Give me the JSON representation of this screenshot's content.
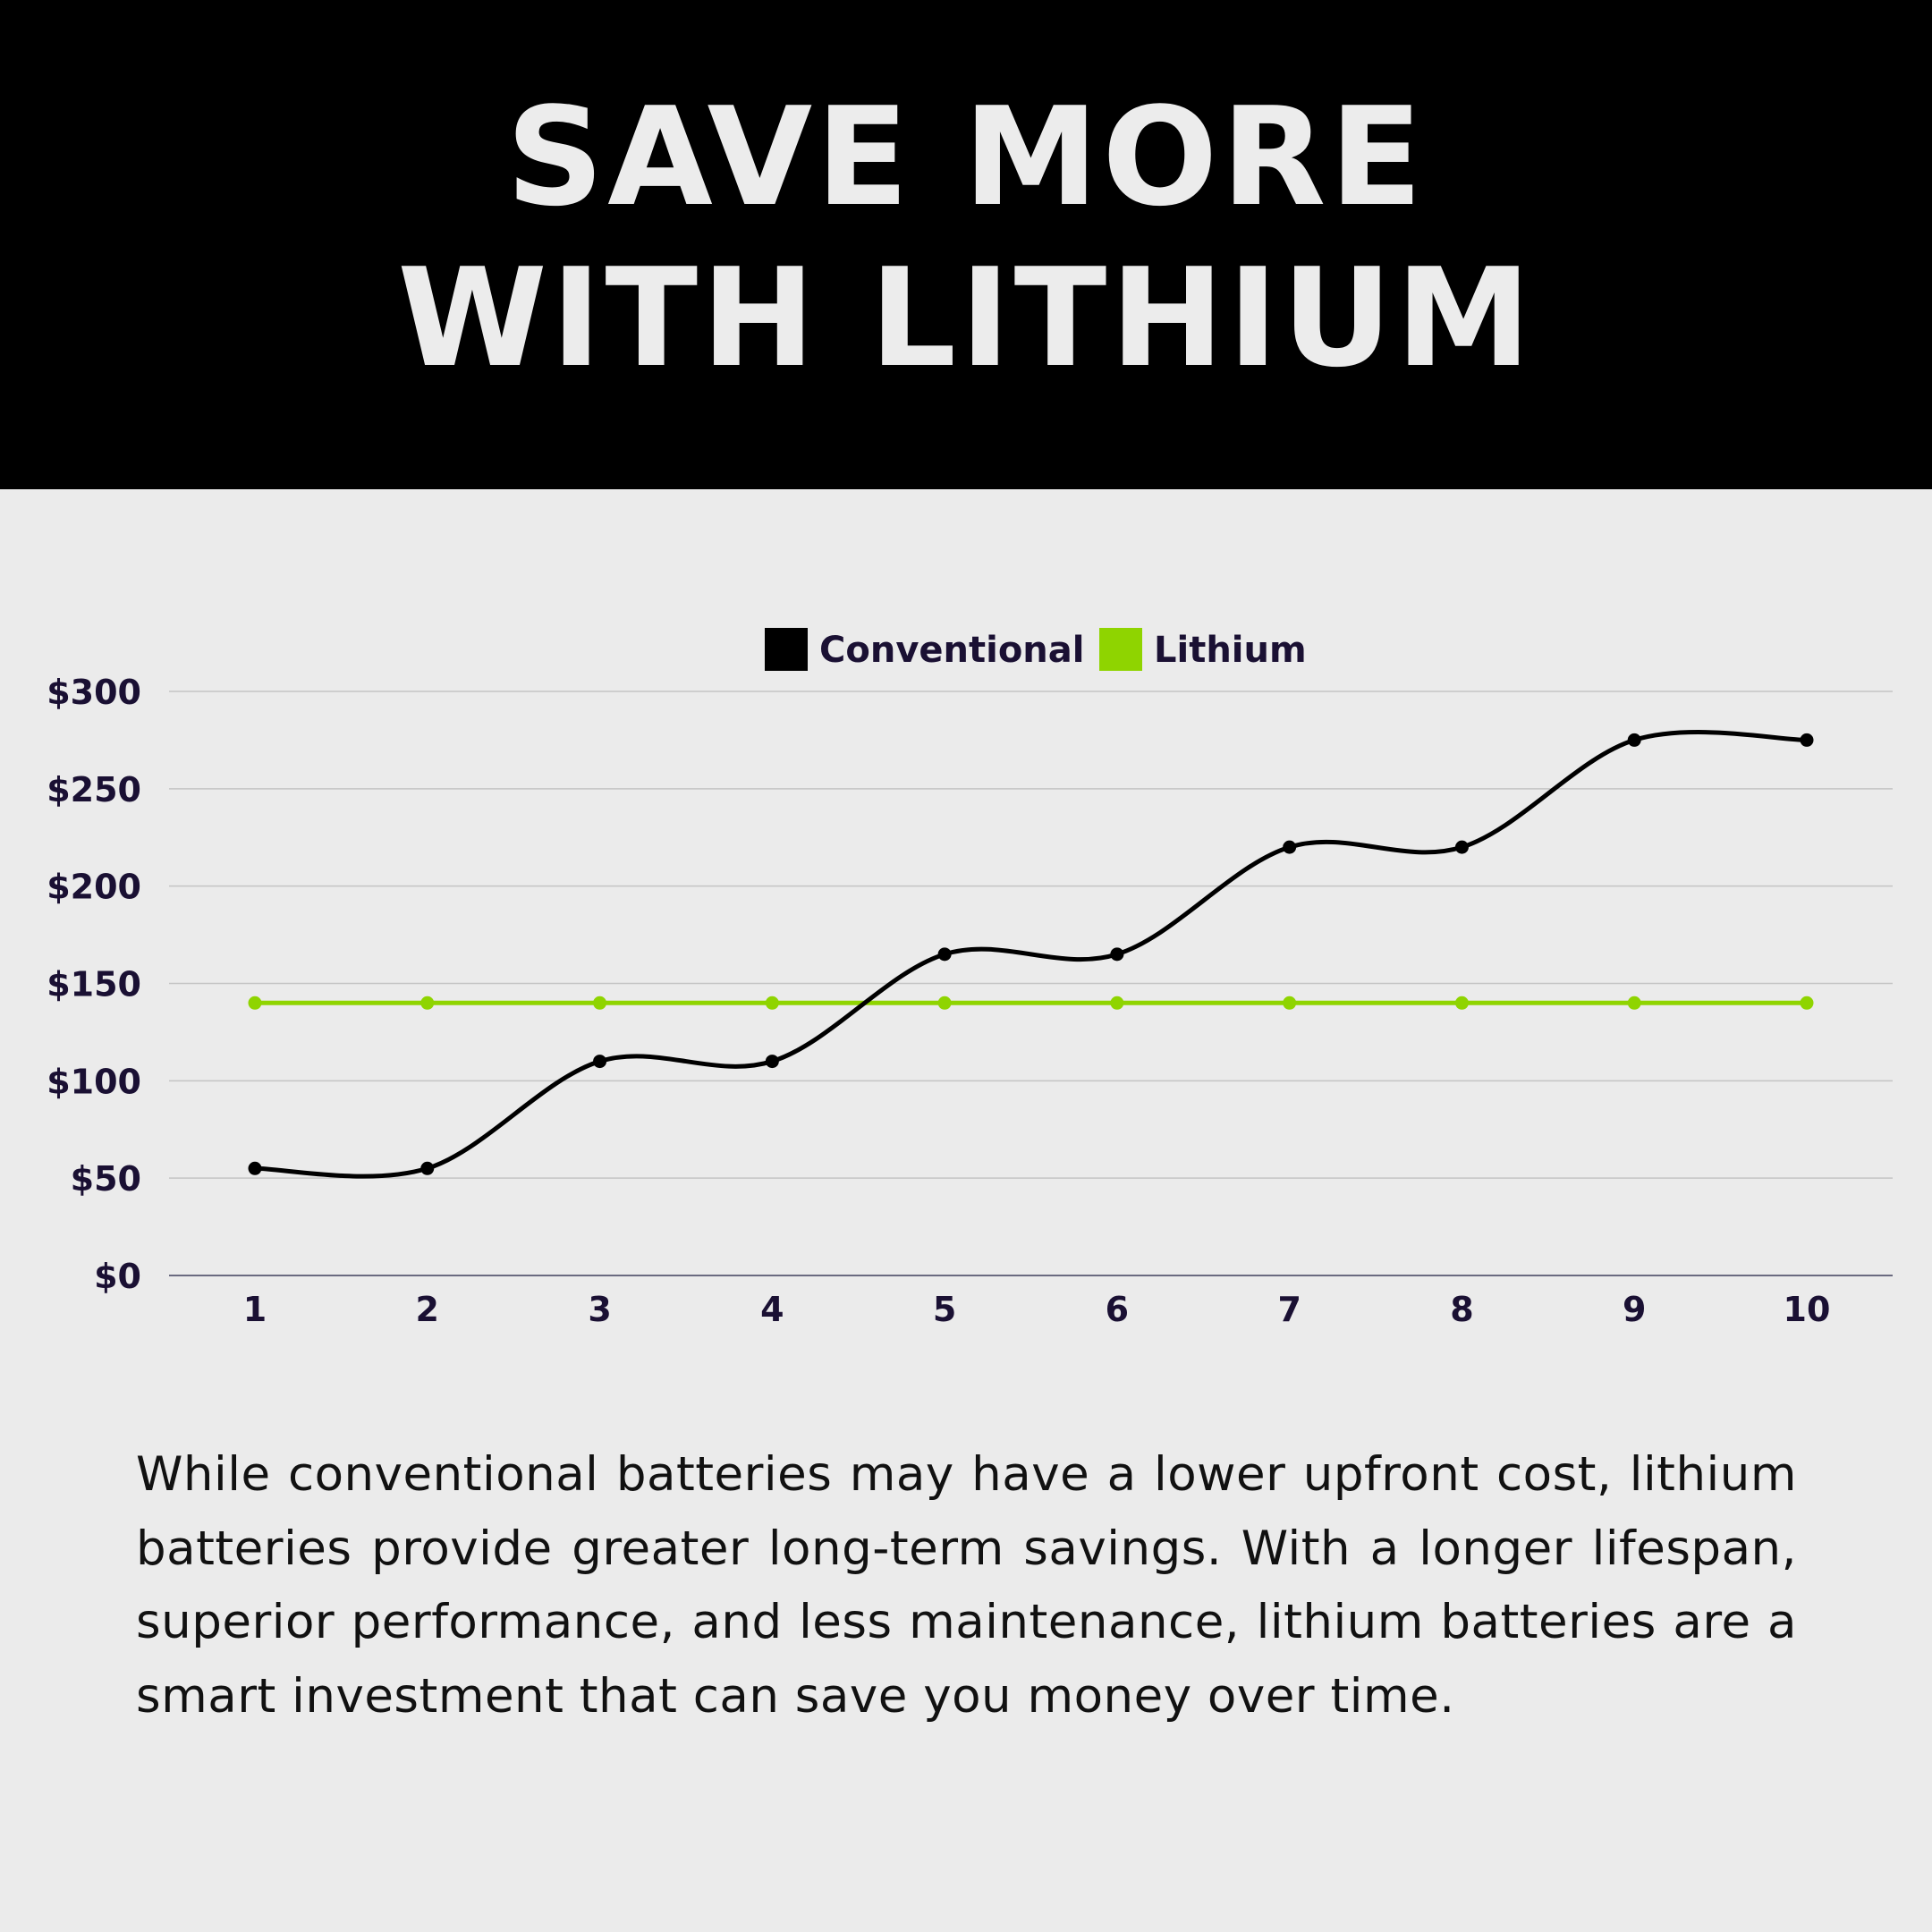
{
  "header": {
    "title_line1": "SAVE MORE",
    "title_line2": "WITH LITHIUM"
  },
  "chart_data": {
    "type": "line",
    "categories": [
      "1",
      "2",
      "3",
      "4",
      "5",
      "6",
      "7",
      "8",
      "9",
      "10"
    ],
    "series": [
      {
        "name": "Conventional",
        "color": "#000000",
        "smooth": true,
        "values": [
          55,
          55,
          110,
          110,
          165,
          165,
          220,
          220,
          275,
          275
        ]
      },
      {
        "name": "Lithium",
        "color": "#8fd400",
        "smooth": false,
        "values": [
          140,
          140,
          140,
          140,
          140,
          140,
          140,
          140,
          140,
          140
        ]
      }
    ],
    "ylim": [
      0,
      300
    ],
    "yticks": [
      0,
      50,
      100,
      150,
      200,
      250,
      300
    ],
    "ytick_labels": [
      "$0",
      "$50",
      "$100",
      "$150",
      "$200",
      "$250",
      "$300"
    ],
    "grid": true,
    "legend": "top-center",
    "title": "",
    "xlabel": "",
    "ylabel": ""
  },
  "body_text": "While conventional batteries may have a lower upfront cost, lithium batteries provide greater long-term savings. With a longer lifespan, superior performance, and less maintenance, lithium batteries are a smart investment that can save you money over time."
}
